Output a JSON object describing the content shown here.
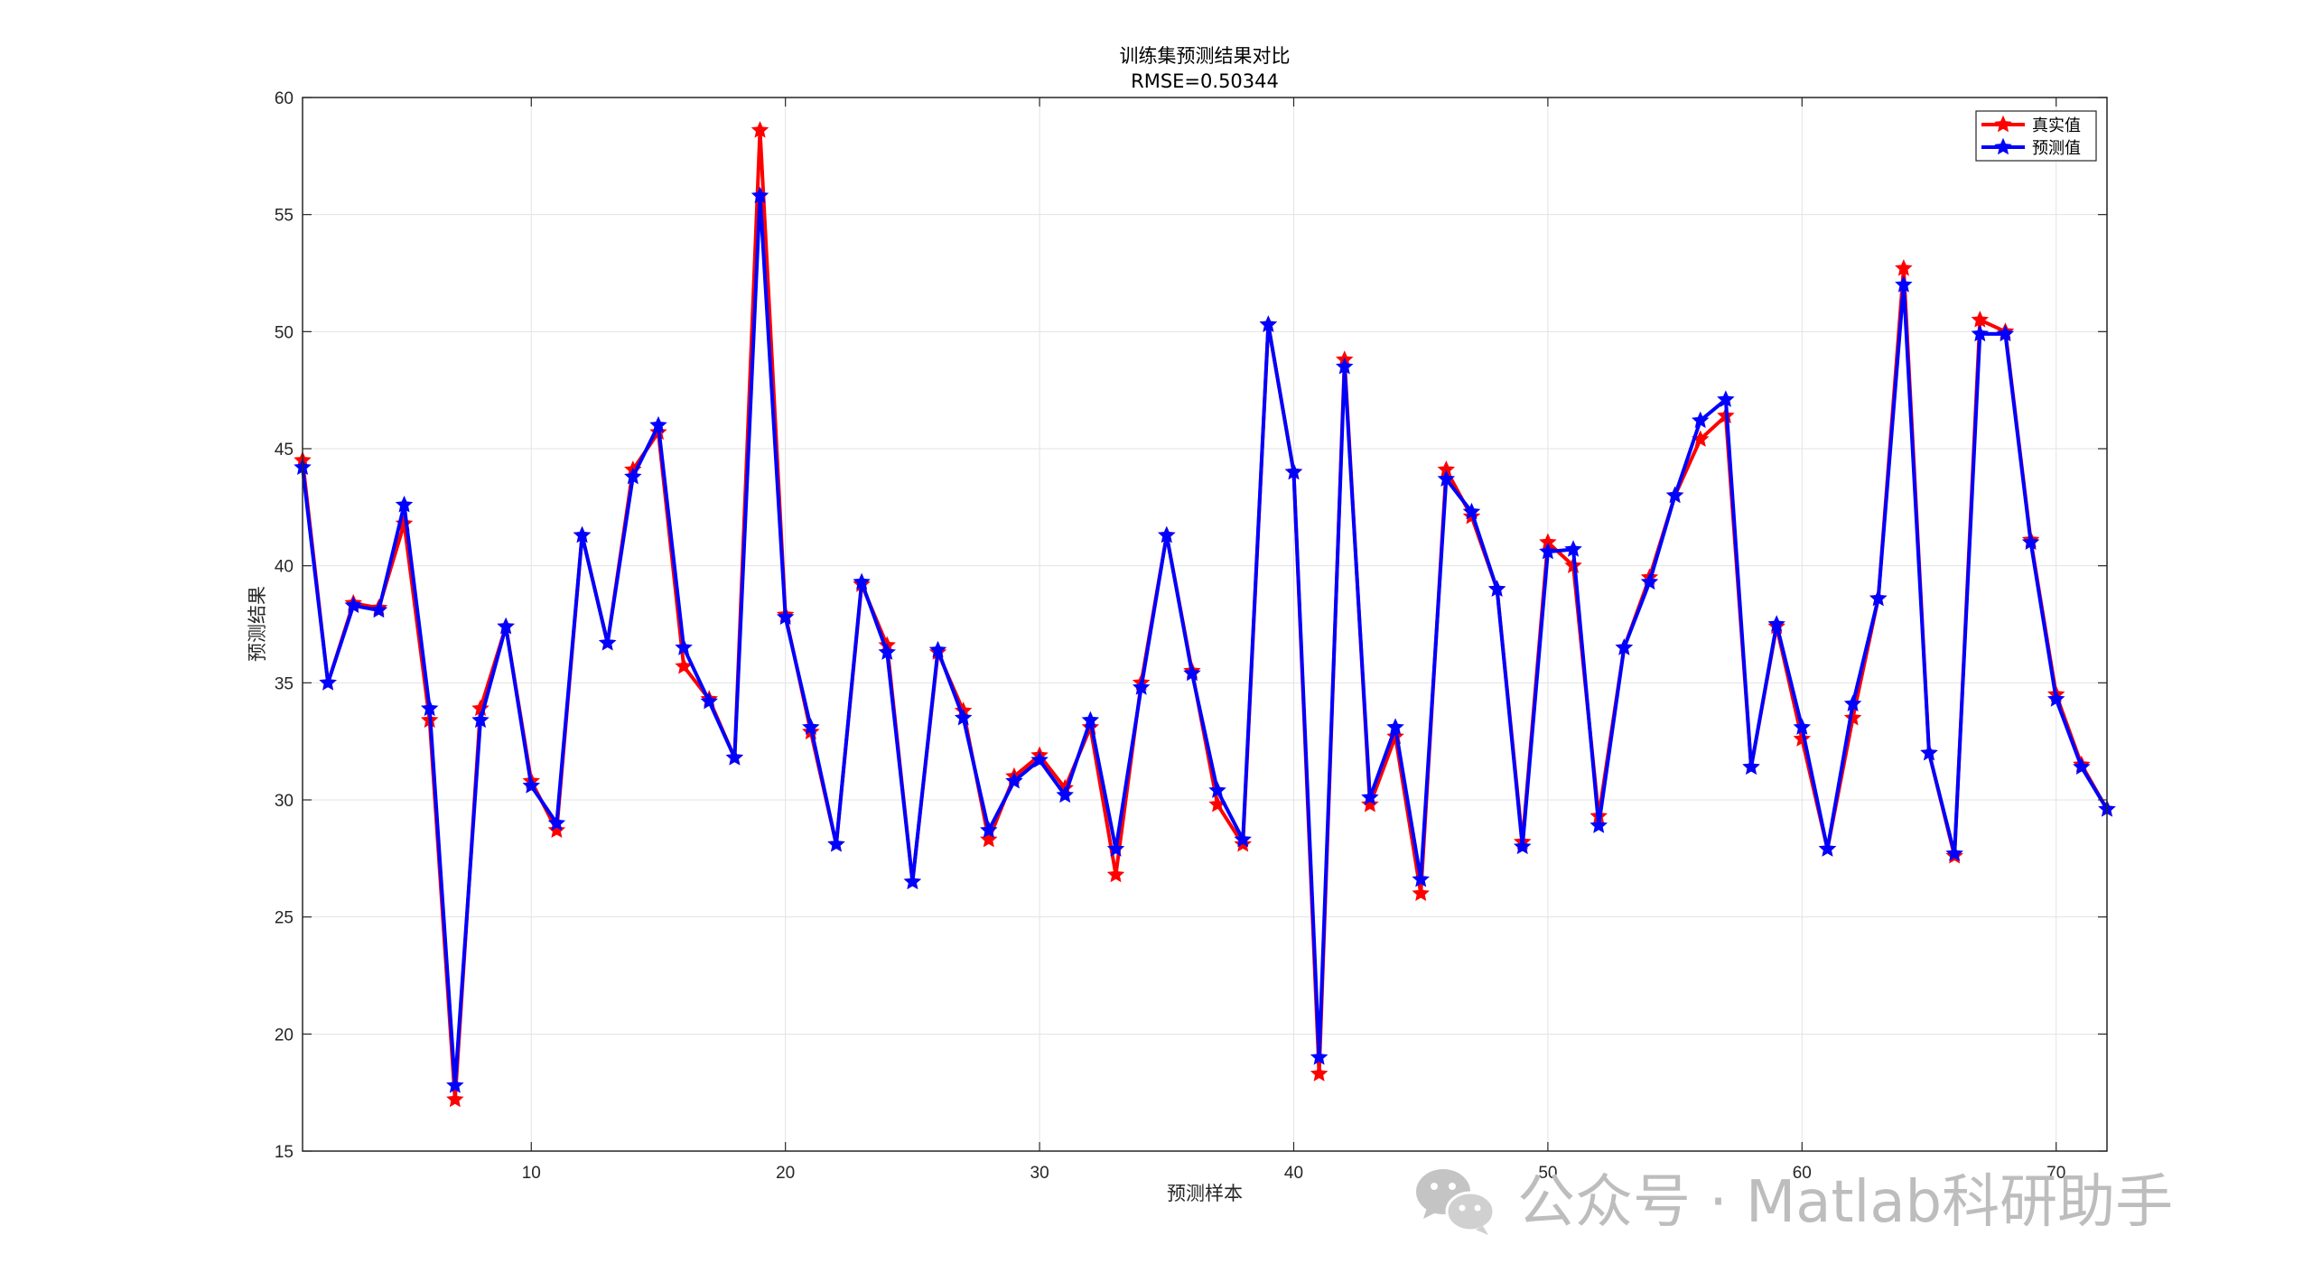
{
  "watermark": {
    "text": "公众号 · Matlab科研助手",
    "icon": "wechat-icon"
  },
  "chart_data": {
    "type": "line",
    "title": "训练集预测结果对比",
    "subtitle": "RMSE=0.50344",
    "xlabel": "预测样本",
    "ylabel": "预测结果",
    "xlim": [
      1,
      72
    ],
    "ylim": [
      15,
      60
    ],
    "xticks": [
      10,
      20,
      30,
      40,
      50,
      60,
      70
    ],
    "yticks": [
      15,
      20,
      25,
      30,
      35,
      40,
      45,
      50,
      55,
      60
    ],
    "grid": true,
    "legend_position": "top-right",
    "x": [
      1,
      2,
      3,
      4,
      5,
      6,
      7,
      8,
      9,
      10,
      11,
      12,
      13,
      14,
      15,
      16,
      17,
      18,
      19,
      20,
      21,
      22,
      23,
      24,
      25,
      26,
      27,
      28,
      29,
      30,
      31,
      32,
      33,
      34,
      35,
      36,
      37,
      38,
      39,
      40,
      41,
      42,
      43,
      44,
      45,
      46,
      47,
      48,
      49,
      50,
      51,
      52,
      53,
      54,
      55,
      56,
      57,
      58,
      59,
      60,
      61,
      62,
      63,
      64,
      65,
      66,
      67,
      68,
      69,
      70,
      71,
      72
    ],
    "series": [
      {
        "name": "真实值",
        "color": "#ff0000",
        "values": [
          44.5,
          35.0,
          38.4,
          38.2,
          41.8,
          33.4,
          17.2,
          33.9,
          37.4,
          30.8,
          28.7,
          41.3,
          36.7,
          44.1,
          45.7,
          35.7,
          34.3,
          31.8,
          58.6,
          37.9,
          32.9,
          28.1,
          39.2,
          36.6,
          26.5,
          36.3,
          33.8,
          28.3,
          31.0,
          31.9,
          30.5,
          33.1,
          26.8,
          35.0,
          41.3,
          35.5,
          29.8,
          28.1,
          50.3,
          44.0,
          18.3,
          48.8,
          29.8,
          32.7,
          26.0,
          44.1,
          42.1,
          39.0,
          28.2,
          41.0,
          40.0,
          29.3,
          36.5,
          39.5,
          43.0,
          45.4,
          46.4,
          31.4,
          37.4,
          32.6,
          27.9,
          33.5,
          38.6,
          52.7,
          32.0,
          27.6,
          50.5,
          50.0,
          41.1,
          34.5,
          31.5,
          29.6
        ]
      },
      {
        "name": "预测值",
        "color": "#0000ff",
        "values": [
          44.2,
          35.0,
          38.3,
          38.1,
          42.6,
          33.9,
          17.8,
          33.4,
          37.4,
          30.6,
          29.0,
          41.3,
          36.7,
          43.8,
          46.0,
          36.5,
          34.2,
          31.8,
          55.8,
          37.8,
          33.1,
          28.1,
          39.3,
          36.3,
          26.5,
          36.4,
          33.5,
          28.7,
          30.8,
          31.7,
          30.2,
          33.4,
          27.9,
          34.8,
          41.3,
          35.4,
          30.4,
          28.3,
          50.3,
          44.0,
          19.0,
          48.5,
          30.1,
          33.1,
          26.6,
          43.7,
          42.3,
          39.0,
          28.0,
          40.6,
          40.7,
          28.9,
          36.5,
          39.3,
          43.0,
          46.2,
          47.1,
          31.4,
          37.5,
          33.1,
          27.9,
          34.1,
          38.6,
          52.0,
          32.0,
          27.7,
          49.9,
          49.9,
          41.0,
          34.3,
          31.4,
          29.6
        ]
      }
    ]
  }
}
